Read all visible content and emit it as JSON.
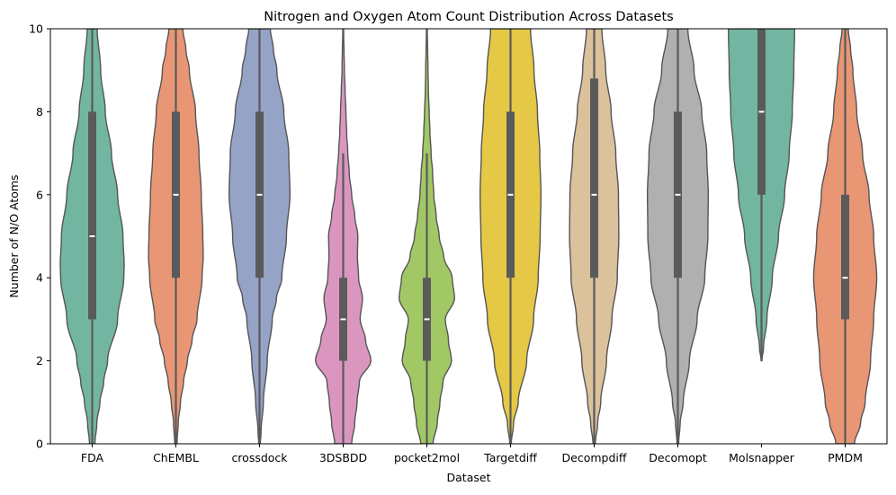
{
  "chart_data": {
    "type": "violin",
    "title": "Nitrogen and Oxygen Atom Count Distribution Across Datasets",
    "xlabel": "Dataset",
    "ylabel": "Number of N/O Atoms",
    "ylim": [
      0,
      10
    ],
    "yticks": [
      0,
      2,
      4,
      6,
      8,
      10
    ],
    "grid": false,
    "legend": "none",
    "categories": [
      "FDA",
      "ChEMBL",
      "crossdock",
      "3DSBDD",
      "pocket2mol",
      "Targetdiff",
      "Decompdiff",
      "Decomopt",
      "Molsnapper",
      "PMDM"
    ],
    "colors": [
      "#72b6a1",
      "#e99675",
      "#95a3c6",
      "#db96c0",
      "#a2c865",
      "#e5c845",
      "#dbc19c",
      "#b0b0b0",
      "#72b6a1",
      "#e99675"
    ],
    "stats": [
      {
        "median": 5,
        "q1": 3,
        "q3": 8,
        "whisker_low": 0,
        "whisker_high": 10
      },
      {
        "median": 6,
        "q1": 4,
        "q3": 8,
        "whisker_low": 0,
        "whisker_high": 10
      },
      {
        "median": 6,
        "q1": 4,
        "q3": 8,
        "whisker_low": 0,
        "whisker_high": 10
      },
      {
        "median": 3,
        "q1": 2,
        "q3": 4,
        "whisker_low": 0,
        "whisker_high": 7
      },
      {
        "median": 3,
        "q1": 2,
        "q3": 4,
        "whisker_low": 0,
        "whisker_high": 7
      },
      {
        "median": 6,
        "q1": 4,
        "q3": 8,
        "whisker_low": 0,
        "whisker_high": 10
      },
      {
        "median": 6,
        "q1": 4,
        "q3": 8.8,
        "whisker_low": 0,
        "whisker_high": 10
      },
      {
        "median": 6,
        "q1": 4,
        "q3": 8,
        "whisker_low": 0,
        "whisker_high": 10
      },
      {
        "median": 8,
        "q1": 6,
        "q3": 10,
        "whisker_low": 2,
        "whisker_high": 10
      },
      {
        "median": 4,
        "q1": 3,
        "q3": 6,
        "whisker_low": 0,
        "whisker_high": 10
      }
    ],
    "density": [
      {
        "y": [
          0,
          0.5,
          1,
          1.5,
          2,
          3,
          4,
          4.3,
          5,
          6,
          7,
          8,
          9,
          10
        ],
        "w": [
          0.07,
          0.12,
          0.2,
          0.3,
          0.4,
          0.66,
          0.82,
          0.83,
          0.8,
          0.66,
          0.5,
          0.34,
          0.22,
          0.13
        ]
      },
      {
        "y": [
          0,
          0.5,
          1,
          1.5,
          2,
          2.5,
          3,
          4,
          4.5,
          5,
          6,
          7,
          8,
          9,
          9.5,
          10
        ],
        "w": [
          0.03,
          0.06,
          0.12,
          0.2,
          0.3,
          0.42,
          0.55,
          0.68,
          0.71,
          0.7,
          0.66,
          0.6,
          0.51,
          0.35,
          0.26,
          0.18
        ]
      },
      {
        "y": [
          0,
          0.3,
          1,
          2,
          3,
          3.5,
          4,
          5,
          6,
          7,
          8,
          9,
          9.5,
          10
        ],
        "w": [
          0.02,
          0.04,
          0.1,
          0.2,
          0.33,
          0.44,
          0.58,
          0.7,
          0.79,
          0.76,
          0.63,
          0.45,
          0.36,
          0.28
        ]
      },
      {
        "y": [
          0,
          0.5,
          1,
          1.5,
          2,
          2.5,
          3,
          3.5,
          4,
          4.5,
          5,
          5.5,
          6,
          6.5,
          7,
          7.5,
          8,
          8.5,
          9,
          9.5,
          10
        ],
        "w": [
          0.22,
          0.3,
          0.36,
          0.42,
          0.72,
          0.58,
          0.44,
          0.5,
          0.4,
          0.37,
          0.38,
          0.3,
          0.22,
          0.16,
          0.12,
          0.09,
          0.07,
          0.05,
          0.03,
          0.02,
          0.01
        ]
      },
      {
        "y": [
          0,
          0.5,
          1,
          1.5,
          2,
          2.5,
          3,
          3.5,
          4,
          4.5,
          5,
          5.5,
          6,
          6.5,
          7,
          7.5,
          8,
          8.5,
          9,
          9.5,
          10
        ],
        "w": [
          0.16,
          0.27,
          0.34,
          0.42,
          0.64,
          0.56,
          0.48,
          0.72,
          0.66,
          0.44,
          0.32,
          0.24,
          0.18,
          0.15,
          0.11,
          0.08,
          0.06,
          0.04,
          0.03,
          0.02,
          0.01
        ]
      },
      {
        "y": [
          0,
          0.5,
          1,
          2,
          3,
          4,
          5,
          6,
          7,
          8,
          9,
          10
        ],
        "w": [
          0.02,
          0.08,
          0.2,
          0.42,
          0.6,
          0.72,
          0.77,
          0.79,
          0.76,
          0.7,
          0.61,
          0.52
        ]
      },
      {
        "y": [
          0,
          0.5,
          1,
          2,
          3,
          4,
          5,
          6,
          7,
          8,
          9,
          10
        ],
        "w": [
          0.03,
          0.09,
          0.17,
          0.32,
          0.46,
          0.6,
          0.64,
          0.63,
          0.56,
          0.44,
          0.3,
          0.2
        ]
      },
      {
        "y": [
          0,
          0.5,
          1,
          2,
          3,
          4,
          5,
          6,
          7,
          8,
          9,
          10
        ],
        "w": [
          0.02,
          0.06,
          0.14,
          0.3,
          0.5,
          0.7,
          0.78,
          0.79,
          0.75,
          0.62,
          0.42,
          0.26
        ]
      },
      {
        "y": [
          2,
          2.3,
          3,
          4,
          5,
          6,
          7,
          8,
          9,
          10
        ],
        "w": [
          0.01,
          0.05,
          0.14,
          0.28,
          0.44,
          0.6,
          0.72,
          0.8,
          0.84,
          0.86
        ]
      },
      {
        "y": [
          0,
          0.5,
          1,
          2,
          3,
          4,
          5,
          6,
          7,
          8,
          9,
          9.5,
          10
        ],
        "w": [
          0.24,
          0.4,
          0.52,
          0.66,
          0.74,
          0.82,
          0.74,
          0.62,
          0.45,
          0.3,
          0.2,
          0.14,
          0.08
        ]
      }
    ]
  }
}
